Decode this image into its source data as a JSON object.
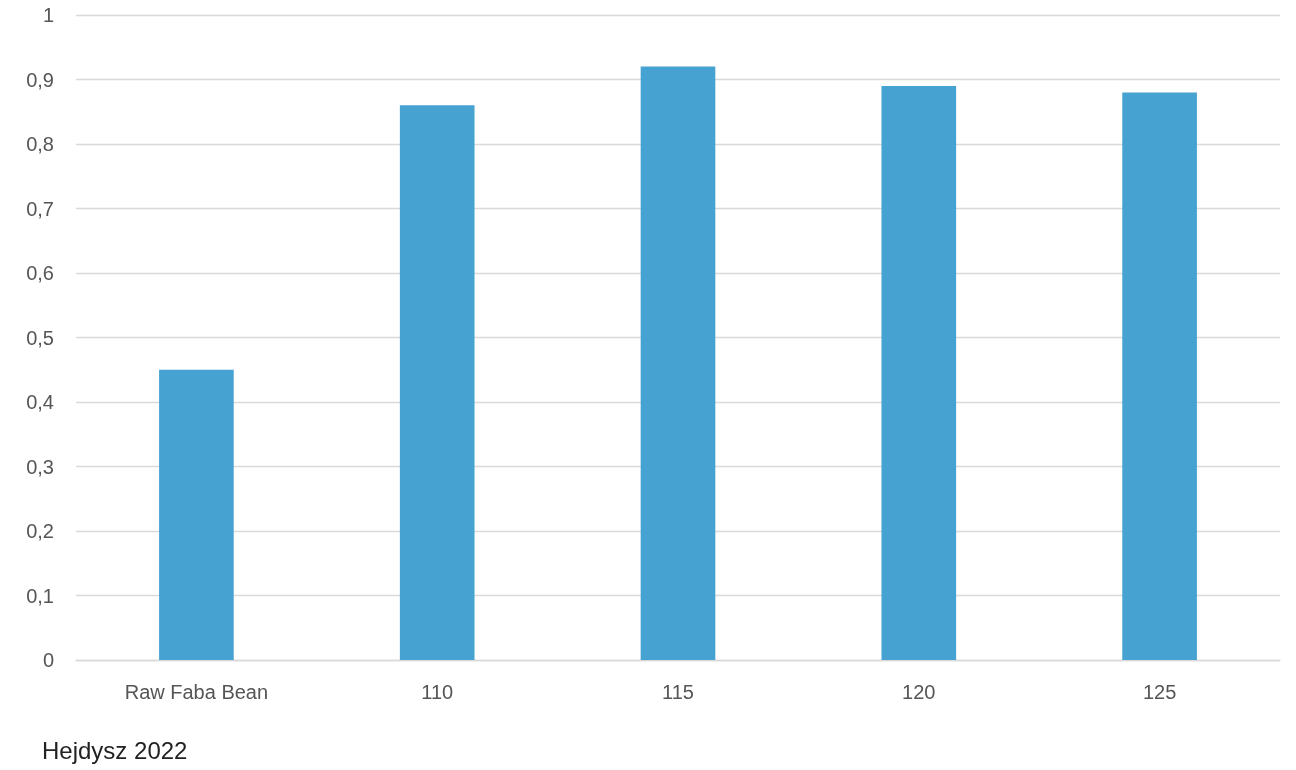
{
  "chart_data": {
    "type": "bar",
    "categories": [
      "Raw Faba Bean",
      "110",
      "115",
      "120",
      "125"
    ],
    "values": [
      0.45,
      0.86,
      0.92,
      0.89,
      0.88
    ],
    "color": "#46a2d0",
    "ylim": [
      0,
      1
    ],
    "yticks": [
      0,
      {
        "value": 0.1,
        "label": "0,1"
      },
      {
        "value": 0.2,
        "label": "0,2"
      },
      {
        "value": 0.3,
        "label": "0,3"
      },
      {
        "value": 0.4,
        "label": "0,4"
      },
      {
        "value": 0.5,
        "label": "0,5"
      },
      {
        "value": 0.6,
        "label": "0,6"
      },
      {
        "value": 0.7,
        "label": "0,7"
      },
      {
        "value": 0.8,
        "label": "0,8"
      },
      {
        "value": 0.9,
        "label": "0,9"
      },
      1
    ],
    "grid": "y",
    "annotations": [
      "Hejdysz 2022"
    ]
  }
}
